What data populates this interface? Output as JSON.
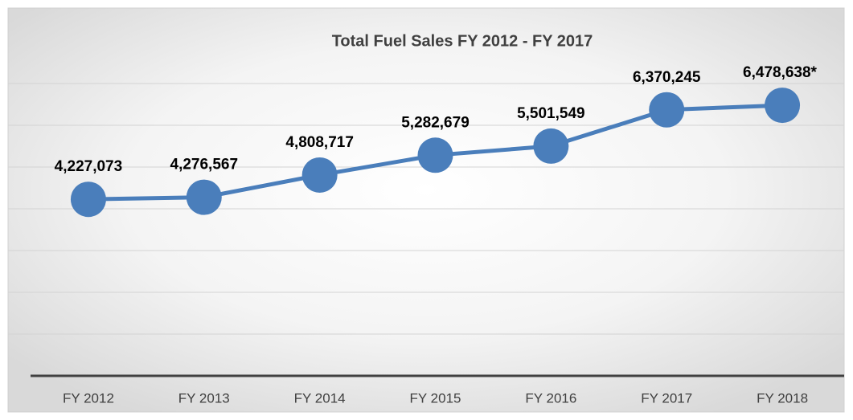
{
  "chart_data": {
    "type": "line",
    "title": "Total Fuel Sales FY 2012 - FY 2017",
    "categories": [
      "FY 2012",
      "FY 2013",
      "FY 2014",
      "FY 2015",
      "FY 2016",
      "FY 2017",
      "FY 2018"
    ],
    "series": [
      {
        "color": "#4a7ebb",
        "values": [
          4227073,
          4276567,
          4808717,
          5282679,
          5501549,
          6370245,
          6478638
        ],
        "value_labels": [
          "4,227,073",
          "4,276,567",
          "4,808,717",
          "5,282,679",
          "5,501,549",
          "6,370,245",
          "6,478,638*"
        ]
      }
    ],
    "ylim": [
      0,
      8000000
    ],
    "yticks": [
      0,
      1000000,
      2000000,
      3000000,
      4000000,
      5000000,
      6000000,
      7000000
    ],
    "grid": true
  }
}
